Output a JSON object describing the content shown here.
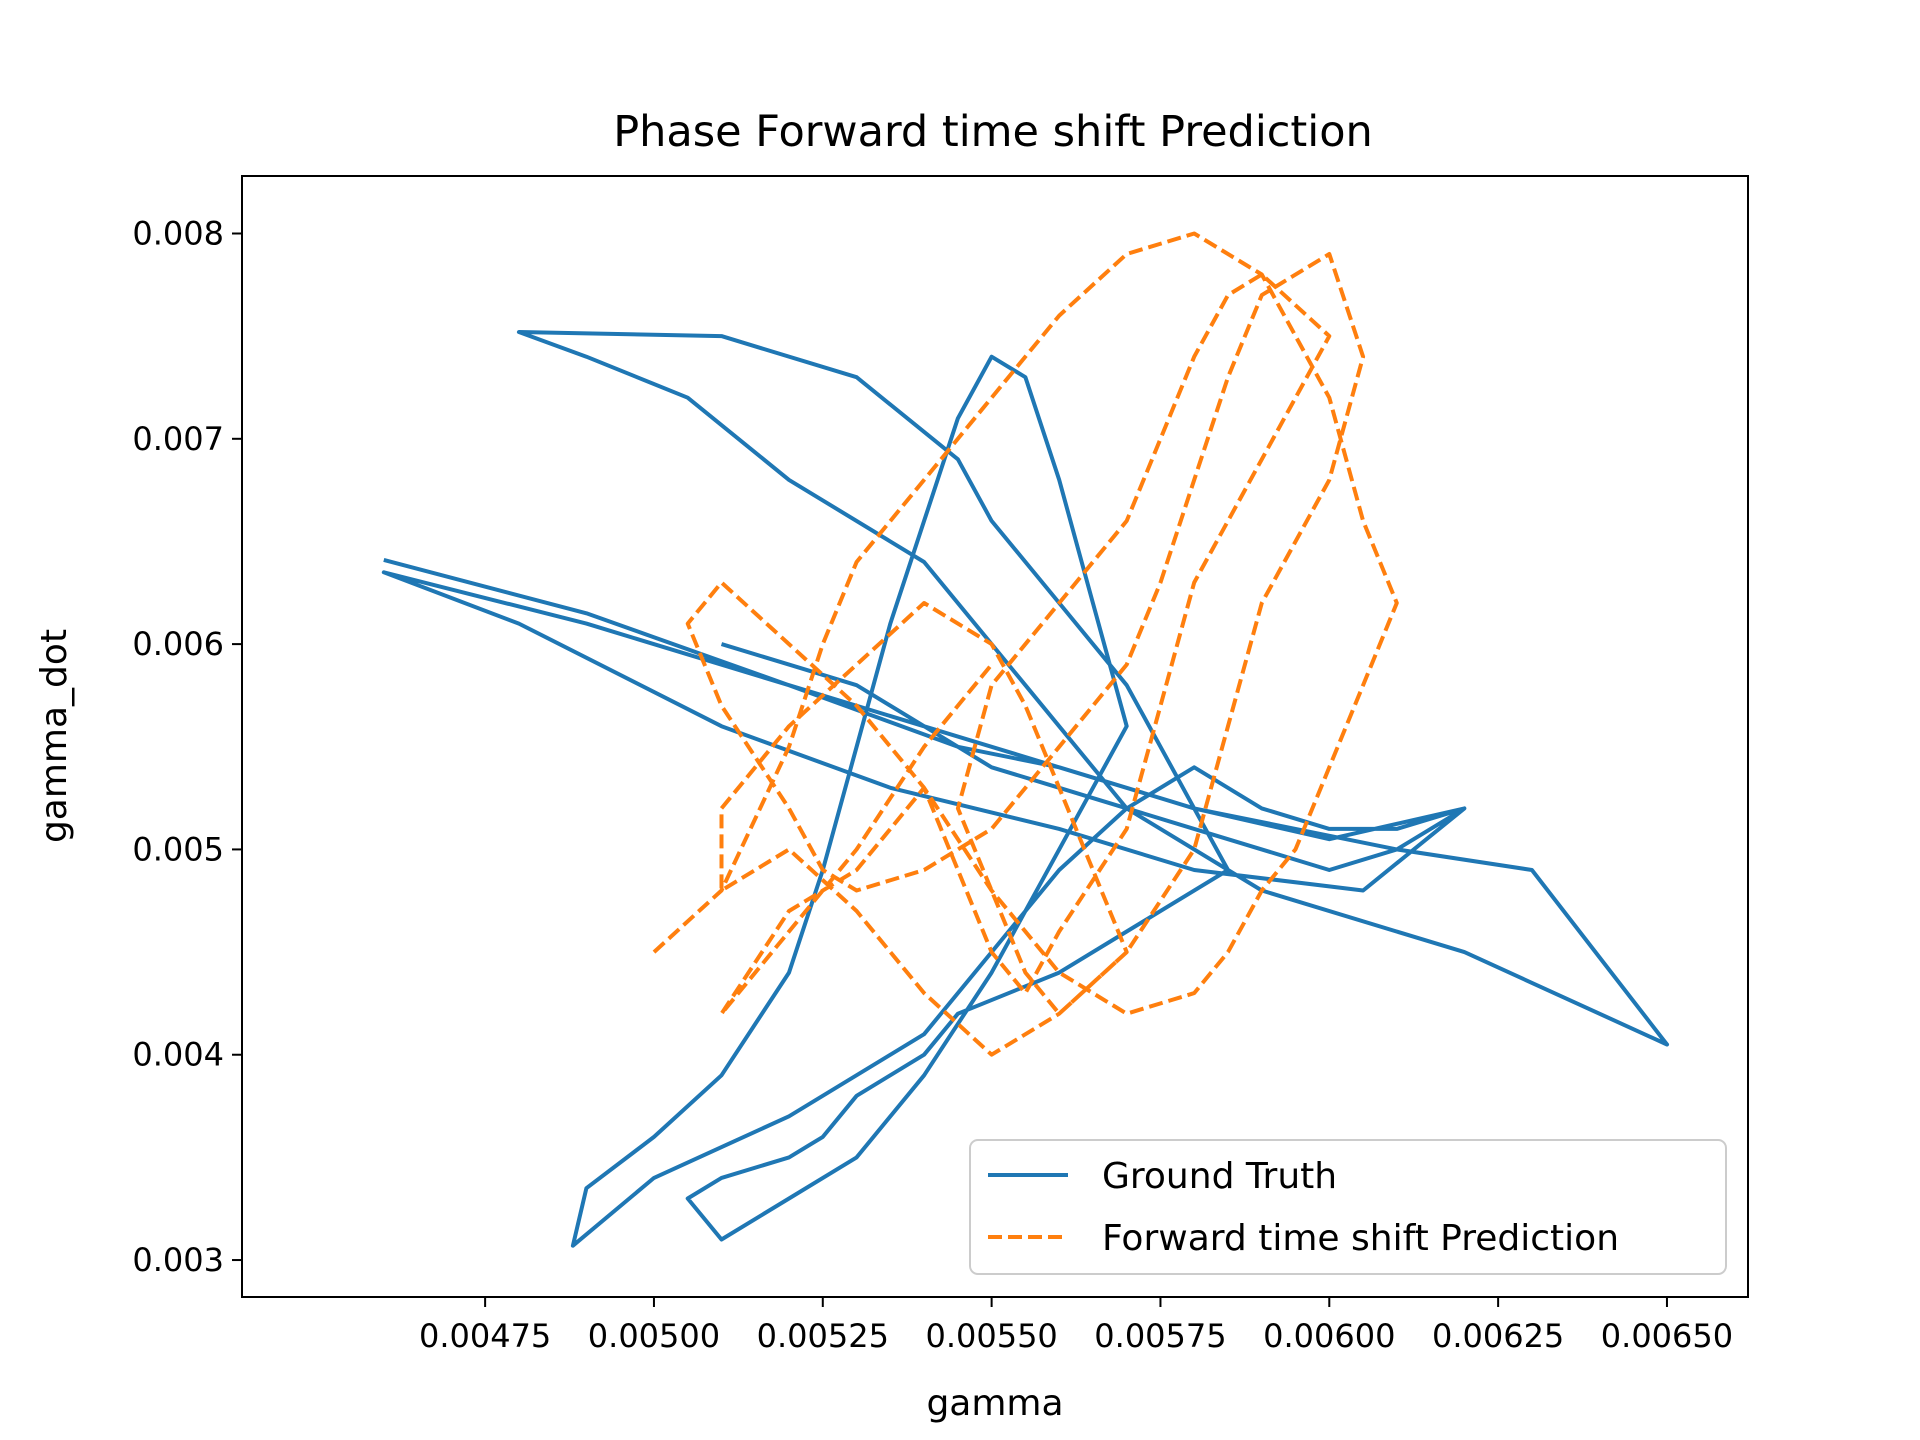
{
  "chart_data": {
    "type": "line",
    "title": "Phase Forward time shift Prediction",
    "xlabel": "gamma",
    "ylabel": "gamma_dot",
    "xlim": [
      0.00439,
      0.00662
    ],
    "ylim": [
      0.00282,
      0.00828
    ],
    "xticks": [
      {
        "value": 0.00475,
        "label": "0.00475"
      },
      {
        "value": 0.005,
        "label": "0.00500"
      },
      {
        "value": 0.00525,
        "label": "0.00525"
      },
      {
        "value": 0.0055,
        "label": "0.00550"
      },
      {
        "value": 0.00575,
        "label": "0.00575"
      },
      {
        "value": 0.006,
        "label": "0.00600"
      },
      {
        "value": 0.00625,
        "label": "0.00625"
      },
      {
        "value": 0.0065,
        "label": "0.00650"
      }
    ],
    "yticks": [
      {
        "value": 0.003,
        "label": "0.003"
      },
      {
        "value": 0.004,
        "label": "0.004"
      },
      {
        "value": 0.005,
        "label": "0.005"
      },
      {
        "value": 0.006,
        "label": "0.006"
      },
      {
        "value": 0.007,
        "label": "0.007"
      },
      {
        "value": 0.008,
        "label": "0.008"
      }
    ],
    "grid": false,
    "legend_position": "bottom-right",
    "series": [
      {
        "name": "Ground Truth",
        "color": "#1f77b4",
        "style": "solid",
        "x": [
          0.0046,
          0.0049,
          0.0052,
          0.00545,
          0.0056,
          0.0058,
          0.006,
          0.0062,
          0.00605,
          0.0058,
          0.0056,
          0.00535,
          0.0051,
          0.0048,
          0.0046,
          0.0049,
          0.0052,
          0.0055,
          0.0058,
          0.0061,
          0.0063,
          0.0065,
          0.0062,
          0.0059,
          0.0057,
          0.00555,
          0.0054,
          0.0052,
          0.00505,
          0.0049,
          0.0048,
          0.0051,
          0.0053,
          0.00545,
          0.0055,
          0.0056,
          0.0057,
          0.00575,
          0.0058,
          0.00585,
          0.0057,
          0.0056,
          0.00545,
          0.0054,
          0.0053,
          0.00525,
          0.0052,
          0.0051,
          0.00505,
          0.0051,
          0.0052,
          0.0053,
          0.0054,
          0.0055,
          0.0056,
          0.0057,
          0.00565,
          0.0056,
          0.00555,
          0.0055,
          0.00545,
          0.0054,
          0.00535,
          0.0053,
          0.00525,
          0.0052,
          0.0051,
          0.005,
          0.0049,
          0.00488,
          0.005,
          0.0052,
          0.0054,
          0.0055,
          0.0056,
          0.0057,
          0.0058,
          0.0059,
          0.006,
          0.0061,
          0.0062,
          0.0061,
          0.006,
          0.0058,
          0.0056,
          0.0055,
          0.0054,
          0.0053,
          0.0052,
          0.0051
        ],
        "y": [
          0.00641,
          0.00615,
          0.0058,
          0.0055,
          0.0054,
          0.0052,
          0.00505,
          0.0052,
          0.0048,
          0.0049,
          0.0051,
          0.0053,
          0.0056,
          0.0061,
          0.00635,
          0.0061,
          0.0058,
          0.0055,
          0.0052,
          0.005,
          0.0049,
          0.00405,
          0.0045,
          0.0048,
          0.0052,
          0.0058,
          0.0064,
          0.0068,
          0.0072,
          0.0074,
          0.00752,
          0.0075,
          0.0073,
          0.0069,
          0.0066,
          0.0062,
          0.0058,
          0.0055,
          0.0052,
          0.0049,
          0.0046,
          0.0044,
          0.0042,
          0.004,
          0.0038,
          0.0036,
          0.0035,
          0.0034,
          0.0033,
          0.0031,
          0.0033,
          0.0035,
          0.0039,
          0.0044,
          0.005,
          0.0056,
          0.0062,
          0.0068,
          0.0073,
          0.0074,
          0.0071,
          0.0066,
          0.0061,
          0.0055,
          0.0049,
          0.0044,
          0.0039,
          0.0036,
          0.00335,
          0.00307,
          0.0034,
          0.0037,
          0.0041,
          0.0045,
          0.0049,
          0.0052,
          0.0054,
          0.0052,
          0.0051,
          0.0051,
          0.0052,
          0.005,
          0.0049,
          0.0051,
          0.0053,
          0.0054,
          0.0056,
          0.0058,
          0.0059,
          0.006
        ]
      },
      {
        "name": "Forward time shift Prediction",
        "color": "#ff7f0e",
        "style": "dashed",
        "x": [
          0.005,
          0.0051,
          0.0052,
          0.00525,
          0.0053,
          0.0054,
          0.0055,
          0.0056,
          0.0057,
          0.0058,
          0.0059,
          0.006,
          0.00605,
          0.0061,
          0.00605,
          0.006,
          0.00595,
          0.0059,
          0.00585,
          0.0058,
          0.0057,
          0.0056,
          0.0055,
          0.0054,
          0.0053,
          0.0052,
          0.0051,
          0.00505,
          0.0051,
          0.0052,
          0.00525,
          0.0053,
          0.0054,
          0.0055,
          0.0056,
          0.0057,
          0.00575,
          0.0058,
          0.00585,
          0.0059,
          0.006,
          0.00605,
          0.006,
          0.0059,
          0.00585,
          0.0058,
          0.0057,
          0.0056,
          0.0055,
          0.0054,
          0.0053,
          0.0052,
          0.0051,
          0.0051,
          0.0052,
          0.0053,
          0.0054,
          0.0055,
          0.00555,
          0.0056,
          0.00565,
          0.0057,
          0.0056,
          0.00555,
          0.0055,
          0.00545,
          0.0055,
          0.0056,
          0.0057,
          0.00575,
          0.0058,
          0.00585,
          0.0059,
          0.006,
          0.0059,
          0.0058,
          0.00575,
          0.0057,
          0.0056,
          0.00555,
          0.0055,
          0.00545,
          0.0054,
          0.0053,
          0.0052,
          0.0051,
          0.0052,
          0.0053,
          0.0054,
          0.0055
        ],
        "y": [
          0.0045,
          0.0048,
          0.0055,
          0.006,
          0.0064,
          0.0068,
          0.0072,
          0.0076,
          0.0079,
          0.008,
          0.0078,
          0.0072,
          0.0066,
          0.0062,
          0.0058,
          0.0054,
          0.005,
          0.0048,
          0.0045,
          0.0043,
          0.0042,
          0.0044,
          0.0048,
          0.0053,
          0.0057,
          0.006,
          0.0063,
          0.0061,
          0.0057,
          0.0052,
          0.0049,
          0.0048,
          0.0049,
          0.0051,
          0.0055,
          0.0059,
          0.0063,
          0.0068,
          0.0073,
          0.0077,
          0.0079,
          0.0074,
          0.0068,
          0.0062,
          0.0056,
          0.005,
          0.0045,
          0.0042,
          0.004,
          0.0043,
          0.0047,
          0.005,
          0.0048,
          0.0052,
          0.0056,
          0.0059,
          0.0062,
          0.006,
          0.0057,
          0.0053,
          0.0049,
          0.0045,
          0.0042,
          0.0044,
          0.0048,
          0.0052,
          0.0058,
          0.0062,
          0.0066,
          0.007,
          0.0074,
          0.0077,
          0.0078,
          0.0075,
          0.0069,
          0.0063,
          0.0057,
          0.0051,
          0.0046,
          0.0043,
          0.0045,
          0.0049,
          0.0053,
          0.0049,
          0.0047,
          0.0042,
          0.0046,
          0.005,
          0.0055,
          0.0059
        ]
      }
    ]
  }
}
